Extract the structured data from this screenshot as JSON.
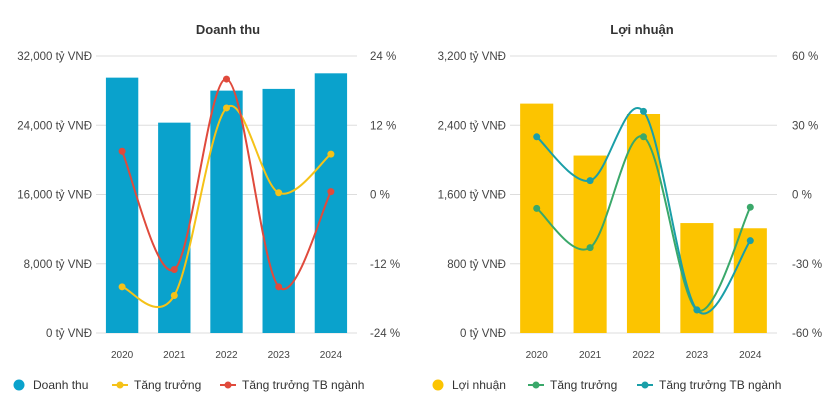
{
  "colors": {
    "revenue_bar": "#0aa2cc",
    "revenue_growth": "#f5c218",
    "revenue_industry": "#e04a3c",
    "profit_bar": "#fcc400",
    "profit_growth": "#3aa86a",
    "profit_industry": "#1a9fa8",
    "grid": "#dddddd",
    "text": "#333333"
  },
  "chart_data": [
    {
      "type": "bar",
      "title": "Doanh thu",
      "categories": [
        "2020",
        "2021",
        "2022",
        "2023",
        "2024"
      ],
      "ylim": [
        0,
        32000
      ],
      "y_ticks": [
        "0 tỷ VNĐ",
        "8,000 tỷ VNĐ",
        "16,000 tỷ VNĐ",
        "24,000 tỷ VNĐ",
        "32,000 tỷ VNĐ"
      ],
      "y2lim": [
        -24,
        24
      ],
      "y2_ticks": [
        "-24 %",
        "-12 %",
        "0 %",
        "12 %",
        "24 %"
      ],
      "grid": true,
      "legend_position": "bottom",
      "series": [
        {
          "name": "Doanh thu",
          "kind": "bar",
          "axis": "left",
          "values": [
            29500,
            24300,
            28000,
            28200,
            30000
          ]
        },
        {
          "name": "Tăng trưởng",
          "kind": "line",
          "axis": "right",
          "values": [
            -16,
            -17.5,
            15,
            0.3,
            7
          ]
        },
        {
          "name": "Tăng trưởng TB ngành",
          "kind": "line",
          "axis": "right",
          "values": [
            7.5,
            -13,
            20,
            -16,
            0.5
          ]
        }
      ]
    },
    {
      "type": "bar",
      "title": "Lợi nhuận",
      "categories": [
        "2020",
        "2021",
        "2022",
        "2023",
        "2024"
      ],
      "ylim": [
        0,
        3200
      ],
      "y_ticks": [
        "0 tỷ VNĐ",
        "800 tỷ VNĐ",
        "1,600 tỷ VNĐ",
        "2,400 tỷ VNĐ",
        "3,200 tỷ VNĐ"
      ],
      "y2lim": [
        -60,
        60
      ],
      "y2_ticks": [
        "-60 %",
        "-30 %",
        "0 %",
        "30 %",
        "60 %"
      ],
      "grid": true,
      "legend_position": "bottom",
      "series": [
        {
          "name": "Lợi nhuận",
          "kind": "bar",
          "axis": "left",
          "values": [
            2650,
            2050,
            2530,
            1270,
            1210
          ]
        },
        {
          "name": "Tăng trưởng",
          "kind": "line",
          "axis": "right",
          "values": [
            -6,
            -23,
            25,
            -50,
            -5.5
          ]
        },
        {
          "name": "Tăng trưởng TB ngành",
          "kind": "line",
          "axis": "right",
          "values": [
            25,
            6,
            36,
            -50,
            -20
          ]
        }
      ]
    }
  ]
}
